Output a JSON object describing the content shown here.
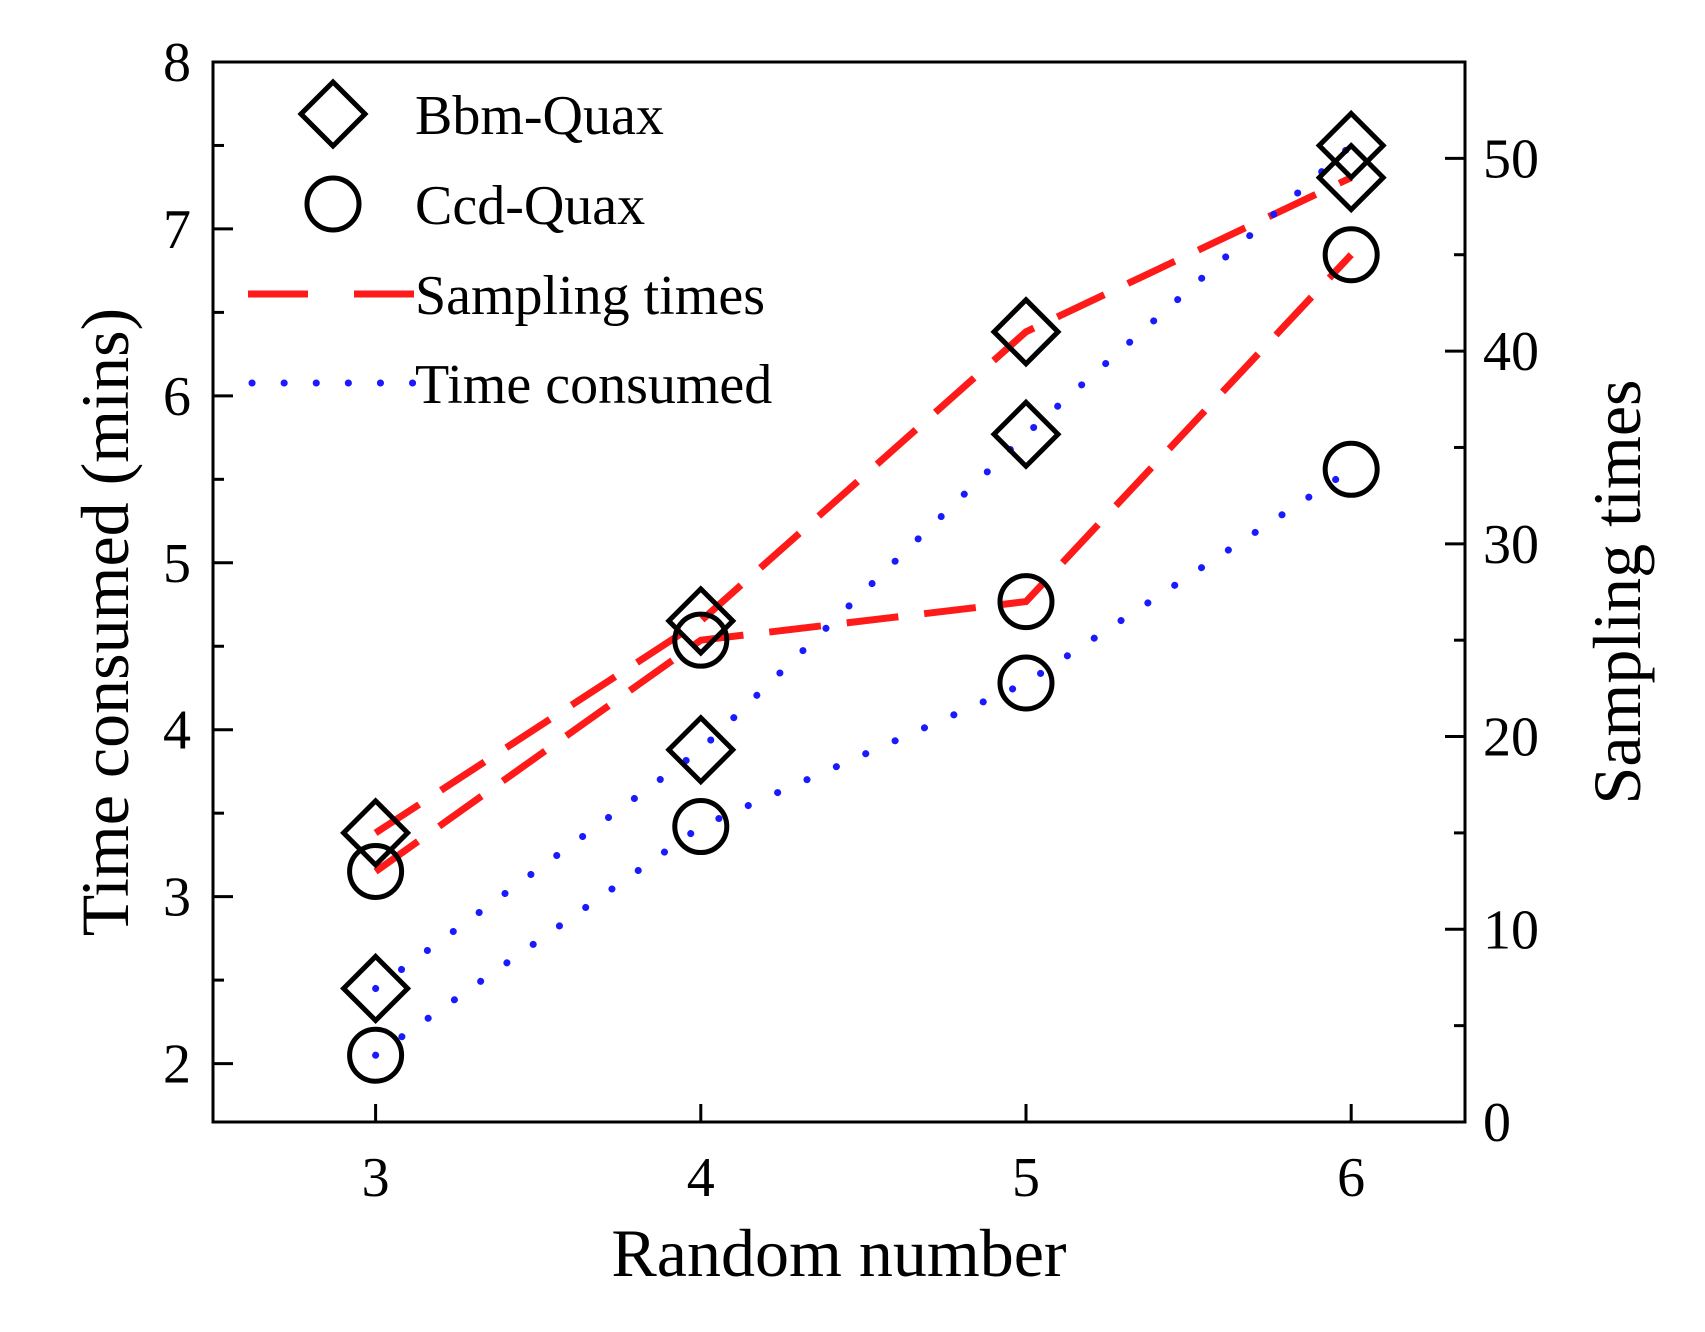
{
  "chart_data": {
    "type": "line",
    "title": "",
    "xlabel": "Random number",
    "ylabel_left": "Time consumed (mins)",
    "ylabel_right": "Sampling times",
    "x_ticks": [
      "3",
      "4",
      "5",
      "6"
    ],
    "y_left_ticks": [
      "2",
      "3",
      "4",
      "5",
      "6",
      "7",
      "8"
    ],
    "y_right_ticks": [
      "0",
      "10",
      "20",
      "30",
      "40",
      "50"
    ],
    "xlim": [
      2.5,
      6.35
    ],
    "ylim_left": [
      1.65,
      8
    ],
    "ylim_right": [
      0,
      55
    ],
    "legend_position": "top-left",
    "legend": [
      {
        "key": "bbm_quax",
        "label": "Bbm-Quax",
        "marker": "diamond"
      },
      {
        "key": "ccd_quax",
        "label": "Ccd-Quax",
        "marker": "circle"
      },
      {
        "key": "sampling",
        "label": "Sampling times",
        "line": "dashed",
        "color": "#ff1a1a"
      },
      {
        "key": "time",
        "label": "Time consumed",
        "line": "dotted",
        "color": "#1a1aff"
      }
    ],
    "series": [
      {
        "name": "Bbm-Quax sampling times",
        "algorithm": "Bbm-Quax",
        "measure": "Sampling times",
        "axis": "right",
        "x": [
          3,
          4,
          5,
          6
        ],
        "values": [
          15,
          26,
          41,
          49
        ]
      },
      {
        "name": "Ccd-Quax sampling times",
        "algorithm": "Ccd-Quax",
        "measure": "Sampling times",
        "axis": "right",
        "x": [
          3,
          4,
          5,
          6
        ],
        "values": [
          13,
          25,
          27,
          45
        ]
      },
      {
        "name": "Bbm-Quax time consumed",
        "algorithm": "Bbm-Quax",
        "measure": "Time consumed",
        "axis": "left",
        "x": [
          3,
          4,
          5,
          6
        ],
        "values": [
          2.45,
          3.88,
          5.77,
          7.5
        ]
      },
      {
        "name": "Ccd-Quax time consumed",
        "algorithm": "Ccd-Quax",
        "measure": "Time consumed",
        "axis": "left",
        "x": [
          3,
          4,
          5,
          6
        ],
        "values": [
          2.05,
          3.42,
          4.28,
          5.56
        ]
      }
    ],
    "colors": {
      "dashed": "#ff1a1a",
      "dotted": "#1a1aff",
      "marker": "#000000"
    }
  }
}
